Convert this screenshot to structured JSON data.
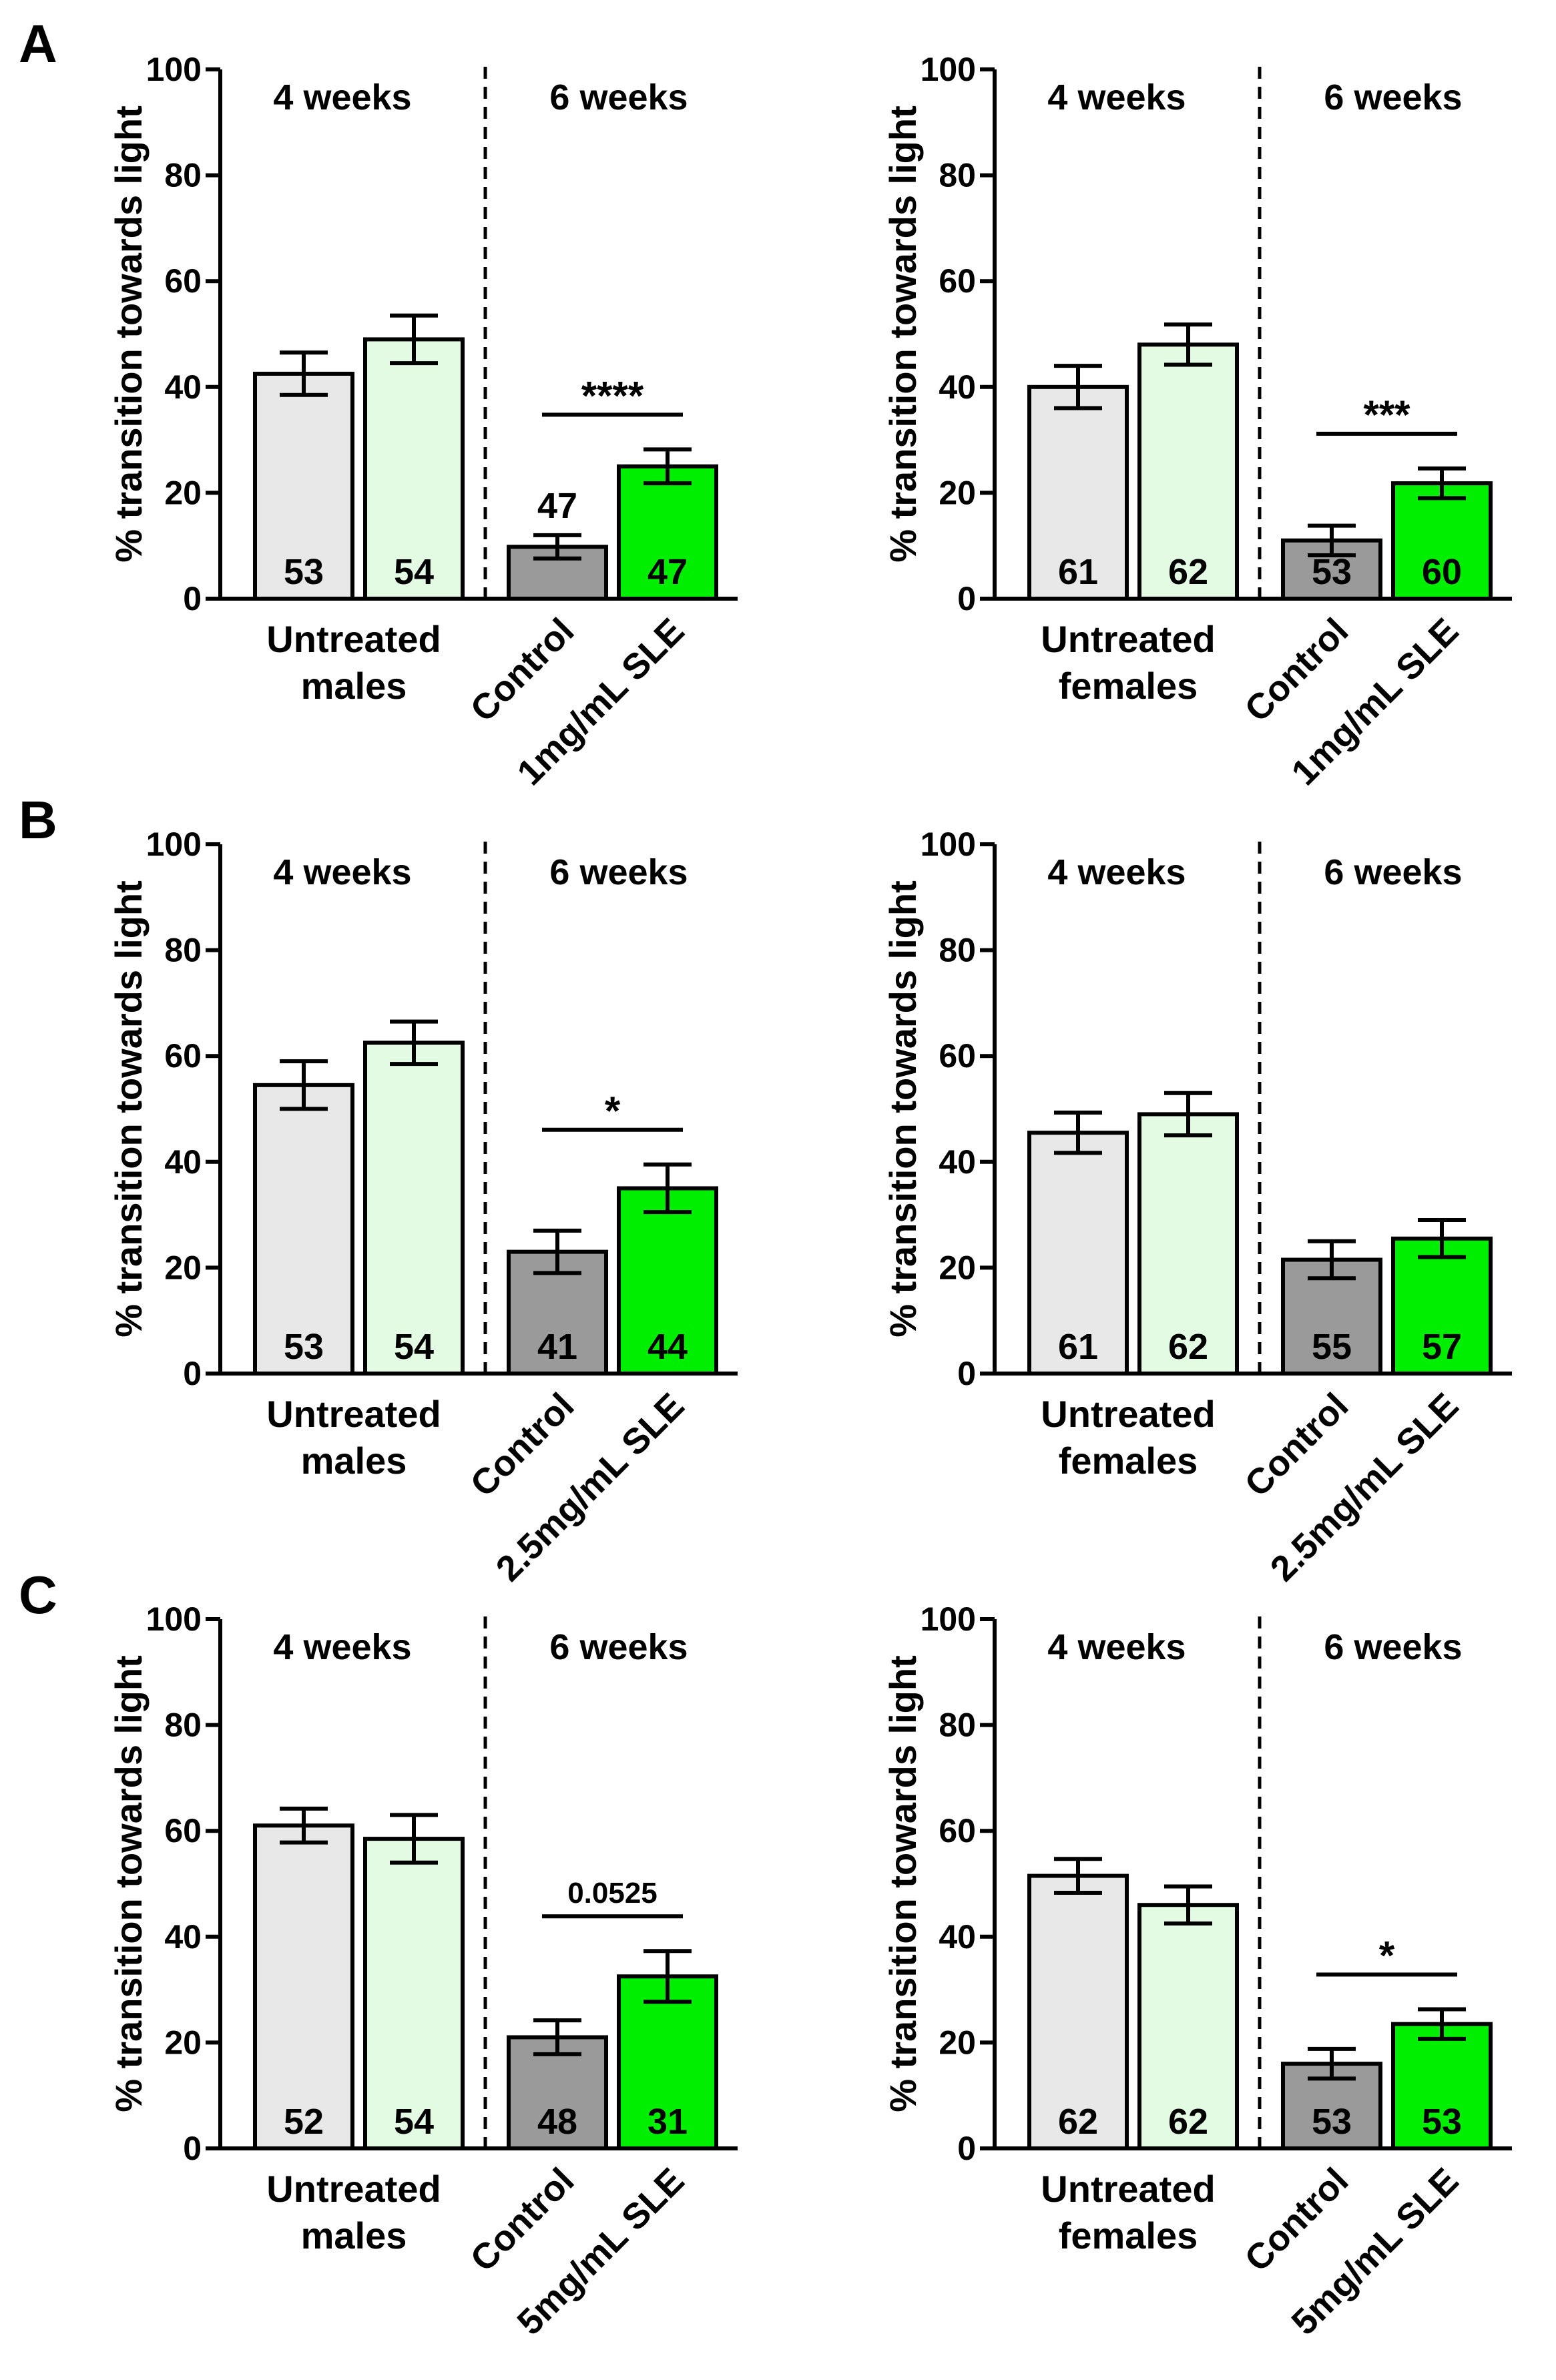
{
  "panel_labels": [
    "A",
    "B",
    "C"
  ],
  "chart_data": [
    {
      "type": "bar",
      "panel": "A",
      "side": "left",
      "ylabel": "% transition towards light",
      "ylim": [
        0,
        100
      ],
      "yticks": [
        "0",
        "20",
        "40",
        "60",
        "80",
        "100"
      ],
      "period_labels": [
        "4 weeks",
        "6 weeks"
      ],
      "group_labels": [
        "Untreated",
        "males"
      ],
      "x_tick_labels": [
        "Control",
        "1mg/mL SLE"
      ],
      "bars": [
        {
          "value": 42.5,
          "err": 4.0,
          "n": "53",
          "fill": "#e8e8e8"
        },
        {
          "value": 49.0,
          "err": 4.5,
          "n": "54",
          "fill": "#e3fbe3"
        },
        {
          "value": 9.8,
          "err": 2.2,
          "n": "47",
          "fill": "#9a9a9a",
          "n_above": true
        },
        {
          "value": 25.0,
          "err": 3.2,
          "n": "47",
          "fill": "#00ee00"
        }
      ],
      "significance": "****"
    },
    {
      "type": "bar",
      "panel": "A",
      "side": "right",
      "ylabel": "% transition towards light",
      "ylim": [
        0,
        100
      ],
      "yticks": [
        "0",
        "20",
        "40",
        "60",
        "80",
        "100"
      ],
      "period_labels": [
        "4 weeks",
        "6 weeks"
      ],
      "group_labels": [
        "Untreated",
        "females"
      ],
      "x_tick_labels": [
        "Control",
        "1mg/mL SLE"
      ],
      "bars": [
        {
          "value": 40.0,
          "err": 4.0,
          "n": "61",
          "fill": "#e8e8e8"
        },
        {
          "value": 48.0,
          "err": 3.8,
          "n": "62",
          "fill": "#e3fbe3"
        },
        {
          "value": 11.0,
          "err": 2.8,
          "n": "53",
          "fill": "#9a9a9a"
        },
        {
          "value": 21.8,
          "err": 2.8,
          "n": "60",
          "fill": "#00ee00"
        }
      ],
      "significance": "***"
    },
    {
      "type": "bar",
      "panel": "B",
      "side": "left",
      "ylabel": "% transition towards light",
      "ylim": [
        0,
        100
      ],
      "yticks": [
        "0",
        "20",
        "40",
        "60",
        "80",
        "100"
      ],
      "period_labels": [
        "4 weeks",
        "6 weeks"
      ],
      "group_labels": [
        "Untreated",
        "males"
      ],
      "x_tick_labels": [
        "Control",
        "2.5mg/mL SLE"
      ],
      "bars": [
        {
          "value": 54.5,
          "err": 4.5,
          "n": "53",
          "fill": "#e8e8e8"
        },
        {
          "value": 62.5,
          "err": 4.0,
          "n": "54",
          "fill": "#e3fbe3"
        },
        {
          "value": 23.0,
          "err": 4.0,
          "n": "41",
          "fill": "#9a9a9a"
        },
        {
          "value": 35.0,
          "err": 4.5,
          "n": "44",
          "fill": "#00ee00"
        }
      ],
      "significance": "*"
    },
    {
      "type": "bar",
      "panel": "B",
      "side": "right",
      "ylabel": "% transition towards light",
      "ylim": [
        0,
        100
      ],
      "yticks": [
        "0",
        "20",
        "40",
        "60",
        "80",
        "100"
      ],
      "period_labels": [
        "4 weeks",
        "6 weeks"
      ],
      "group_labels": [
        "Untreated",
        "females"
      ],
      "x_tick_labels": [
        "Control",
        "2.5mg/mL SLE"
      ],
      "bars": [
        {
          "value": 45.5,
          "err": 3.8,
          "n": "61",
          "fill": "#e8e8e8"
        },
        {
          "value": 49.0,
          "err": 4.0,
          "n": "62",
          "fill": "#e3fbe3"
        },
        {
          "value": 21.5,
          "err": 3.5,
          "n": "55",
          "fill": "#9a9a9a"
        },
        {
          "value": 25.5,
          "err": 3.5,
          "n": "57",
          "fill": "#00ee00"
        }
      ],
      "significance": ""
    },
    {
      "type": "bar",
      "panel": "C",
      "side": "left",
      "ylabel": "% transition towards light",
      "ylim": [
        0,
        100
      ],
      "yticks": [
        "0",
        "20",
        "40",
        "60",
        "80",
        "100"
      ],
      "period_labels": [
        "4 weeks",
        "6 weeks"
      ],
      "group_labels": [
        "Untreated",
        "males"
      ],
      "x_tick_labels": [
        "Control",
        "5mg/mL SLE"
      ],
      "bars": [
        {
          "value": 61.0,
          "err": 3.2,
          "n": "52",
          "fill": "#e8e8e8"
        },
        {
          "value": 58.5,
          "err": 4.5,
          "n": "54",
          "fill": "#e3fbe3"
        },
        {
          "value": 21.0,
          "err": 3.2,
          "n": "48",
          "fill": "#9a9a9a"
        },
        {
          "value": 32.5,
          "err": 4.8,
          "n": "31",
          "fill": "#00ee00"
        }
      ],
      "significance": "0.0525"
    },
    {
      "type": "bar",
      "panel": "C",
      "side": "right",
      "ylabel": "% transition towards light",
      "ylim": [
        0,
        100
      ],
      "yticks": [
        "0",
        "20",
        "40",
        "60",
        "80",
        "100"
      ],
      "period_labels": [
        "4 weeks",
        "6 weeks"
      ],
      "group_labels": [
        "Untreated",
        "females"
      ],
      "x_tick_labels": [
        "Control",
        "5mg/mL SLE"
      ],
      "bars": [
        {
          "value": 51.5,
          "err": 3.2,
          "n": "62",
          "fill": "#e8e8e8"
        },
        {
          "value": 46.0,
          "err": 3.5,
          "n": "62",
          "fill": "#e3fbe3"
        },
        {
          "value": 16.0,
          "err": 2.8,
          "n": "53",
          "fill": "#9a9a9a"
        },
        {
          "value": 23.5,
          "err": 2.8,
          "n": "53",
          "fill": "#00ee00"
        }
      ],
      "significance": "*"
    }
  ]
}
